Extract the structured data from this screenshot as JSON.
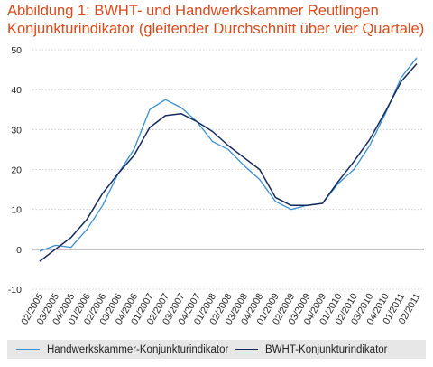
{
  "title_line1": "Abbildung 1: BWHT- und Handwerkskammer  Reutlingen",
  "title_line2": "Konjunkturindikator (gleitender Durchschnitt über vier Quartale)",
  "colors": {
    "title": "#d84a1b",
    "handwerkskammer": "#3a8fcf",
    "bwht": "#152a5c",
    "zero_line": "#666666",
    "grid": "#c8c8c8",
    "legend_bg": "#e7e7e7"
  },
  "legend": {
    "handwerkskammer": "Handwerkskammer-Konjunkturindikator",
    "bwht": "BWHT-Konjunkturindikator"
  },
  "chart_data": {
    "type": "line",
    "x": [
      "02/2005",
      "03/2005",
      "04/2005",
      "01/2006",
      "02/2006",
      "03/2006",
      "04/2006",
      "01/2007",
      "02/2007",
      "03/2007",
      "04/2007",
      "01/2008",
      "02/2008",
      "03/2008",
      "04/2008",
      "01/2009",
      "02/2009",
      "03/2009",
      "04/2009",
      "01/2010",
      "02/2010",
      "03/2010",
      "04/2010",
      "01/2011",
      "02/2011"
    ],
    "series": [
      {
        "name": "Handwerkskammer-Konjunkturindikator",
        "color": "#3a8fcf",
        "values": [
          -0.5,
          1,
          0.5,
          5,
          11,
          19,
          25,
          35,
          37.5,
          35.5,
          32,
          27,
          25,
          21,
          17.5,
          12,
          10,
          11,
          11.5,
          16.5,
          20,
          26,
          34,
          43,
          48
        ]
      },
      {
        "name": "BWHT-Konjunkturindikator",
        "color": "#152a5c",
        "values": [
          -3,
          0,
          3,
          7.5,
          14,
          19,
          23.5,
          30.5,
          33.5,
          34,
          32,
          29.5,
          26,
          23,
          20,
          13,
          11,
          11,
          11.5,
          17,
          22,
          27.5,
          34.5,
          42,
          46.5
        ]
      }
    ],
    "ylim": [
      -10,
      50
    ],
    "yticks": [
      -10,
      0,
      10,
      20,
      30,
      40,
      50
    ],
    "grid": "horizontal",
    "legend_position": "bottom"
  }
}
